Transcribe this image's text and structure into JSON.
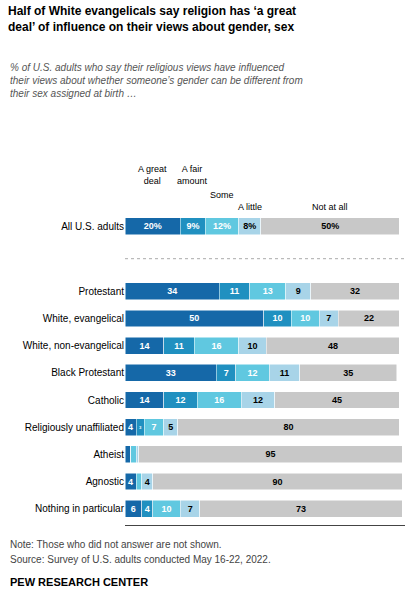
{
  "chart_data": {
    "type": "bar",
    "orientation": "horizontal",
    "stacked": true,
    "title": "Half of White evangelicals say religion has ‘a great\ndeal’ of influence on their views about gender, sex",
    "subtitle": "% of U.S. adults who say their religious views have influenced\ntheir views about whether someone’s gender can be different from\ntheir sex assigned at birth …",
    "categories": [
      "All U.S. adults",
      "Protestant",
      "White, evangelical",
      "White, non-evangelical",
      "Black Protestant",
      "Catholic",
      "Religiously unaffiliated",
      "Atheist",
      "Agnostic",
      "Nothing in particular"
    ],
    "series": [
      {
        "name": "A great\ndeal",
        "color": "#1568a8",
        "values": [
          20,
          34,
          50,
          14,
          33,
          14,
          4,
          2,
          4,
          6
        ],
        "value_labels": [
          "20%",
          "34",
          "50",
          "14",
          "33",
          "14",
          "4",
          null,
          "4",
          "6"
        ]
      },
      {
        "name": "A fair\namount",
        "color": "#2090c0",
        "values": [
          9,
          11,
          10,
          11,
          7,
          12,
          3,
          0,
          0,
          4
        ],
        "value_labels": [
          "9%",
          "11",
          "10",
          "11",
          "7",
          "12",
          "3",
          null,
          null,
          "4"
        ]
      },
      {
        "name": "Some",
        "color": "#60c8e0",
        "values": [
          12,
          13,
          10,
          16,
          12,
          16,
          7,
          2,
          2,
          10
        ],
        "value_labels": [
          "12%",
          "13",
          "10",
          "16",
          "12",
          "16",
          "7",
          null,
          null,
          "10"
        ]
      },
      {
        "name": "A little",
        "color": "#a8d4e8",
        "values": [
          8,
          9,
          7,
          10,
          11,
          12,
          5,
          1,
          4,
          7
        ],
        "value_labels": [
          "8%",
          "9",
          "7",
          "10",
          "11",
          "12",
          "5",
          null,
          "4",
          "7"
        ]
      },
      {
        "name": "Not at all",
        "color": "#c8c8c8",
        "values": [
          50,
          32,
          22,
          48,
          35,
          45,
          80,
          95,
          90,
          73
        ],
        "value_labels": [
          "50%",
          "32",
          "22",
          "48",
          "35",
          "45",
          "80",
          "95",
          "90",
          "73"
        ]
      }
    ],
    "data_labels": true,
    "xlim": [
      0,
      101
    ],
    "tick_labels": "y",
    "grid": false,
    "annotations": [
      "Note: Those who did not answer are not shown.",
      "Source: Survey of U.S. adults conducted May 16-22, 2022.",
      "PEW RESEARCH CENTER"
    ]
  }
}
